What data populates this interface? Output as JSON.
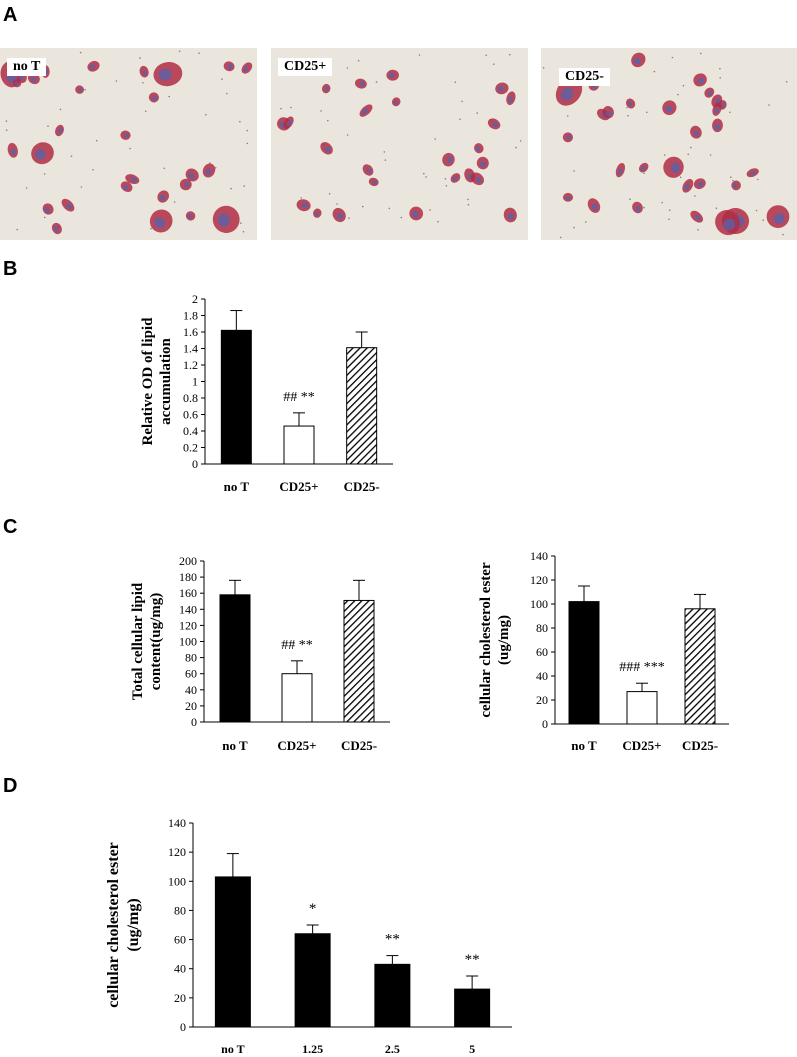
{
  "panels": {
    "a": "A",
    "b": "B",
    "c": "C",
    "d": "D"
  },
  "micrographs": [
    {
      "label": "no T"
    },
    {
      "label": "CD25+"
    },
    {
      "label": "CD25-"
    }
  ],
  "colors": {
    "solid_bar": "#000000",
    "open_bar": "#ffffff",
    "hatched_bar": "#000000",
    "stain_red": "#b22c44",
    "stain_blue": "#5a62a8"
  },
  "chart_data": [
    {
      "type": "bar",
      "panel": "B",
      "ylabel": "Relative OD of lipid accumulation",
      "ylabel_lines": [
        "Relative OD of lipid",
        "accumulation"
      ],
      "ylim": [
        0,
        2
      ],
      "yticks": [
        0,
        0.2,
        0.4,
        0.6,
        0.8,
        1,
        1.2,
        1.4,
        1.6,
        1.8,
        2
      ],
      "categories": [
        "no T",
        "CD25+",
        "CD25-"
      ],
      "values": [
        1.62,
        0.46,
        1.41
      ],
      "errors": [
        0.24,
        0.16,
        0.19
      ],
      "fills": [
        "solid",
        "open",
        "hatched"
      ],
      "annotations": [
        {
          "category": "CD25+",
          "text": "## **"
        }
      ]
    },
    {
      "type": "bar",
      "panel": "C-left",
      "ylabel": "Total cellular lipid content(ug/mg)",
      "ylabel_lines": [
        "Total cellular lipid",
        "content(ug/mg)"
      ],
      "ylim": [
        0,
        200
      ],
      "yticks": [
        0,
        20,
        40,
        60,
        80,
        100,
        120,
        140,
        160,
        180,
        200
      ],
      "categories": [
        "no T",
        "CD25+",
        "CD25-"
      ],
      "values": [
        158,
        60,
        151
      ],
      "errors": [
        18,
        16,
        25
      ],
      "fills": [
        "solid",
        "open",
        "hatched"
      ],
      "annotations": [
        {
          "category": "CD25+",
          "text": "## **"
        }
      ]
    },
    {
      "type": "bar",
      "panel": "C-right",
      "ylabel": "cellular cholesterol ester (ug/mg)",
      "ylabel_lines": [
        "cellular cholesterol ester",
        "(ug/mg)"
      ],
      "ylim": [
        0,
        140
      ],
      "yticks": [
        0,
        20,
        40,
        60,
        80,
        100,
        120,
        140
      ],
      "categories": [
        "no T",
        "CD25+",
        "CD25-"
      ],
      "values": [
        102,
        27,
        96
      ],
      "errors": [
        13,
        7,
        12
      ],
      "fills": [
        "solid",
        "open",
        "hatched"
      ],
      "annotations": [
        {
          "category": "CD25+",
          "text": "### ***"
        }
      ]
    },
    {
      "type": "bar",
      "panel": "D",
      "ylabel": "cellular cholesterol ester (ug/mg)",
      "ylabel_lines": [
        "cellular cholesterol ester",
        "(ug/mg)"
      ],
      "ylim": [
        0,
        140
      ],
      "yticks": [
        0,
        20,
        40,
        60,
        80,
        100,
        120,
        140
      ],
      "categories": [
        "no T",
        "1.25",
        "2.5",
        "5"
      ],
      "values": [
        103,
        64,
        43,
        26
      ],
      "errors": [
        16,
        6,
        6,
        9
      ],
      "fills": [
        "solid",
        "solid",
        "solid",
        "solid"
      ],
      "annotations": [
        {
          "category": "1.25",
          "text": "*"
        },
        {
          "category": "2.5",
          "text": "**"
        },
        {
          "category": "5",
          "text": "**"
        }
      ]
    }
  ]
}
